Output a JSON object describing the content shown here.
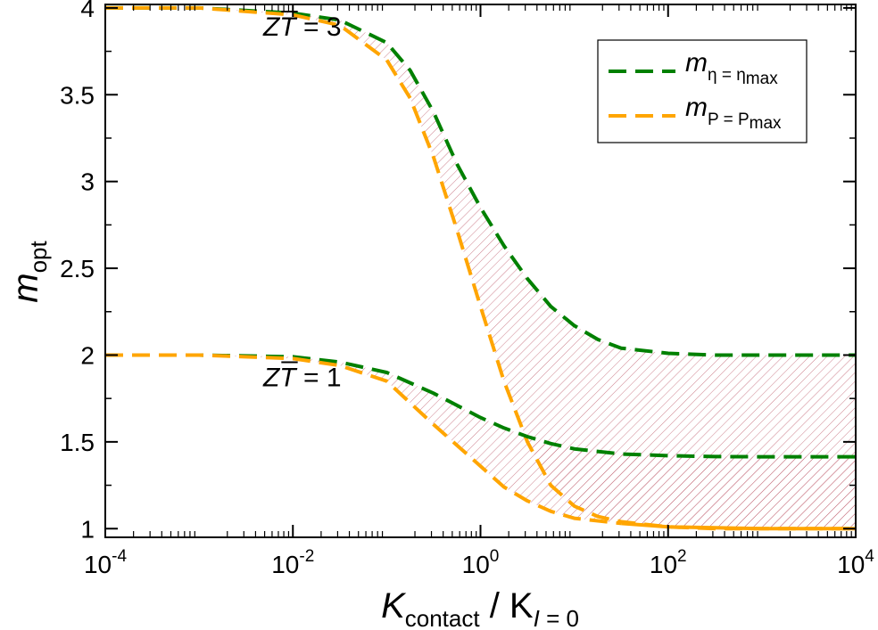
{
  "chart_data": {
    "type": "line",
    "title": "",
    "xscale": "log10",
    "xlim": [
      -4,
      4
    ],
    "ylim": [
      0.95,
      4.02
    ],
    "xlabel": {
      "main": "K",
      "sub1": "contact",
      "sep": " / K",
      "sub2_italic": "I",
      "sub2_rest": " = 0"
    },
    "ylabel": {
      "main": "m",
      "sub": "opt"
    },
    "x_ticks": [
      {
        "base": "10",
        "exp": "-4",
        "pos": -4
      },
      {
        "base": "10",
        "exp": "-2",
        "pos": -2
      },
      {
        "base": "10",
        "exp": "0",
        "pos": 0
      },
      {
        "base": "10",
        "exp": "2",
        "pos": 2
      },
      {
        "base": "10",
        "exp": "4",
        "pos": 4
      }
    ],
    "y_ticks": [
      {
        "label": "1",
        "value": 1
      },
      {
        "label": "1.5",
        "value": 1.5
      },
      {
        "label": "2",
        "value": 2
      },
      {
        "label": "2.5",
        "value": 2.5
      },
      {
        "label": "3",
        "value": 3
      },
      {
        "label": "3.5",
        "value": 3.5
      },
      {
        "label": "4",
        "value": 4
      }
    ],
    "legend": {
      "position": "top-right",
      "entries": [
        {
          "main": "m",
          "sub": "η = η",
          "subsub": "max",
          "color": "#008000"
        },
        {
          "main": "m",
          "sub": "P = P",
          "subsub": "max",
          "color": "#FFA500"
        }
      ]
    },
    "series": [
      {
        "name": "m_eta=eta_max, ZT=3",
        "color": "#008000",
        "style": "dashed",
        "log10_x": [
          -4,
          -3,
          -2,
          -1.5,
          -1,
          -0.75,
          -0.5,
          -0.25,
          0,
          0.25,
          0.5,
          0.75,
          1,
          1.25,
          1.5,
          2,
          2.5,
          3,
          3.5,
          4
        ],
        "y": [
          4.0,
          4.0,
          3.97,
          3.93,
          3.8,
          3.64,
          3.4,
          3.1,
          2.85,
          2.63,
          2.44,
          2.28,
          2.17,
          2.09,
          2.04,
          2.01,
          2.0,
          2.0,
          2.0,
          2.0
        ]
      },
      {
        "name": "m_P=P_max, ZT=3",
        "color": "#FFA500",
        "style": "dashed",
        "log10_x": [
          -4,
          -3,
          -2,
          -1.5,
          -1,
          -0.75,
          -0.5,
          -0.25,
          0,
          0.25,
          0.5,
          0.75,
          1,
          1.25,
          1.5,
          2,
          2.5,
          3,
          3.5,
          4
        ],
        "y": [
          4.0,
          4.0,
          3.96,
          3.9,
          3.7,
          3.48,
          3.14,
          2.72,
          2.28,
          1.85,
          1.5,
          1.25,
          1.13,
          1.07,
          1.04,
          1.01,
          1.0,
          1.0,
          1.0,
          1.0
        ]
      },
      {
        "name": "m_eta=eta_max, ZT=1",
        "color": "#008000",
        "style": "dashed",
        "log10_x": [
          -4,
          -3,
          -2,
          -1.5,
          -1,
          -0.5,
          0,
          0.25,
          0.5,
          0.75,
          1,
          1.5,
          2,
          2.5,
          3,
          3.5,
          4
        ],
        "y": [
          2.0,
          2.0,
          1.99,
          1.96,
          1.9,
          1.78,
          1.64,
          1.58,
          1.53,
          1.49,
          1.46,
          1.43,
          1.42,
          1.415,
          1.414,
          1.414,
          1.414
        ]
      },
      {
        "name": "m_P=P_max, ZT=1",
        "color": "#FFA500",
        "style": "dashed-then-solid",
        "log10_x": [
          -4,
          -3,
          -2,
          -1.5,
          -1,
          -0.5,
          0,
          0.25,
          0.5,
          0.75,
          1,
          1.5,
          2,
          2.5,
          3,
          3.5,
          4
        ],
        "y": [
          2.0,
          2.0,
          1.98,
          1.94,
          1.85,
          1.6,
          1.36,
          1.24,
          1.16,
          1.1,
          1.06,
          1.03,
          1.01,
          1.005,
          1.0,
          1.0,
          1.0
        ]
      }
    ],
    "annotations": [
      {
        "italic": "ZT",
        "rest": " = 3",
        "at_log10x": -1.9,
        "at_y": 3.84
      },
      {
        "italic": "ZT",
        "rest": " = 1",
        "at_log10x": -1.9,
        "at_y": 1.82
      }
    ],
    "shaded_region": "hatched area between the green (η = ηmax) and orange (P = Pmax) curves for each ZT",
    "hatch_color": "#C06070"
  }
}
